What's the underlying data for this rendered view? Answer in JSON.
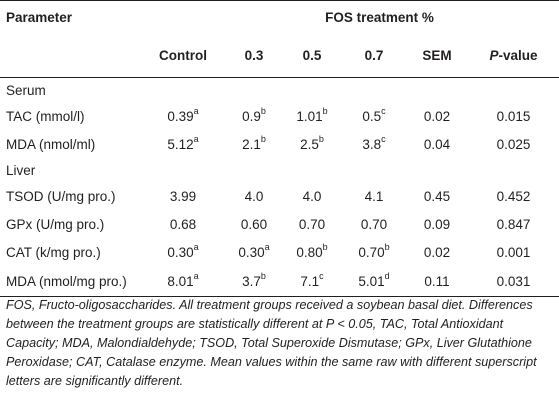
{
  "header": {
    "parameter": "Parameter",
    "group": "FOS treatment %",
    "columns": [
      "Control",
      "0.3",
      "0.5",
      "0.7",
      "SEM"
    ],
    "pvalue_italic": "P",
    "pvalue_rest": "-value"
  },
  "sections": [
    {
      "label": "Serum",
      "rows": [
        {
          "param": "TAC (mmol/l)",
          "control": "0.39",
          "control_sup": "a",
          "t1": "0.9",
          "t1_sup": "b",
          "t2": "1.01",
          "t2_sup": "b",
          "t3": "0.5",
          "t3_sup": "c",
          "sem": "0.02",
          "p": "0.015"
        },
        {
          "param": "MDA (nmol/ml)",
          "control": "5.12",
          "control_sup": "a",
          "t1": "2.1",
          "t1_sup": "b",
          "t2": "2.5",
          "t2_sup": "b",
          "t3": "3.8",
          "t3_sup": "c",
          "sem": "0.04",
          "p": "0.025"
        }
      ]
    },
    {
      "label": "Liver",
      "rows": [
        {
          "param": "TSOD (U/mg pro.)",
          "control": "3.99",
          "control_sup": "",
          "t1": "4.0",
          "t1_sup": "",
          "t2": "4.0",
          "t2_sup": "",
          "t3": "4.1",
          "t3_sup": "",
          "sem": "0.45",
          "p": "0.452"
        },
        {
          "param": "GPx (U/mg pro.)",
          "control": "0.68",
          "control_sup": "",
          "t1": "0.60",
          "t1_sup": "",
          "t2": "0.70",
          "t2_sup": "",
          "t3": "0.70",
          "t3_sup": "",
          "sem": "0.09",
          "p": "0.847"
        },
        {
          "param": "CAT (k/mg pro.)",
          "control": "0.30",
          "control_sup": "a",
          "t1": "0.30",
          "t1_sup": "a",
          "t2": "0.80",
          "t2_sup": "b",
          "t3": "0.70",
          "t3_sup": "b",
          "sem": "0.02",
          "p": "0.001"
        },
        {
          "param": "MDA (nmol/mg pro.)",
          "control": "8.01",
          "control_sup": "a",
          "t1": "3.7",
          "t1_sup": "b",
          "t2": "7.1",
          "t2_sup": "c",
          "t3": "5.01",
          "t3_sup": "d",
          "sem": "0.11",
          "p": "0.031"
        }
      ]
    }
  ],
  "footnote": "FOS, Fructo-oligosaccharides. All treatment groups received a soybean basal diet. Differences between the treatment groups are statistically different at P < 0.05, TAC, Total Antioxidant Capacity; MDA, Malondialdehyde; TSOD, Total Superoxide Dismutase; GPx, Liver Glutathione Peroxidase; CAT, Catalase enzyme. Mean values within the same raw with different superscript letters are significantly different."
}
